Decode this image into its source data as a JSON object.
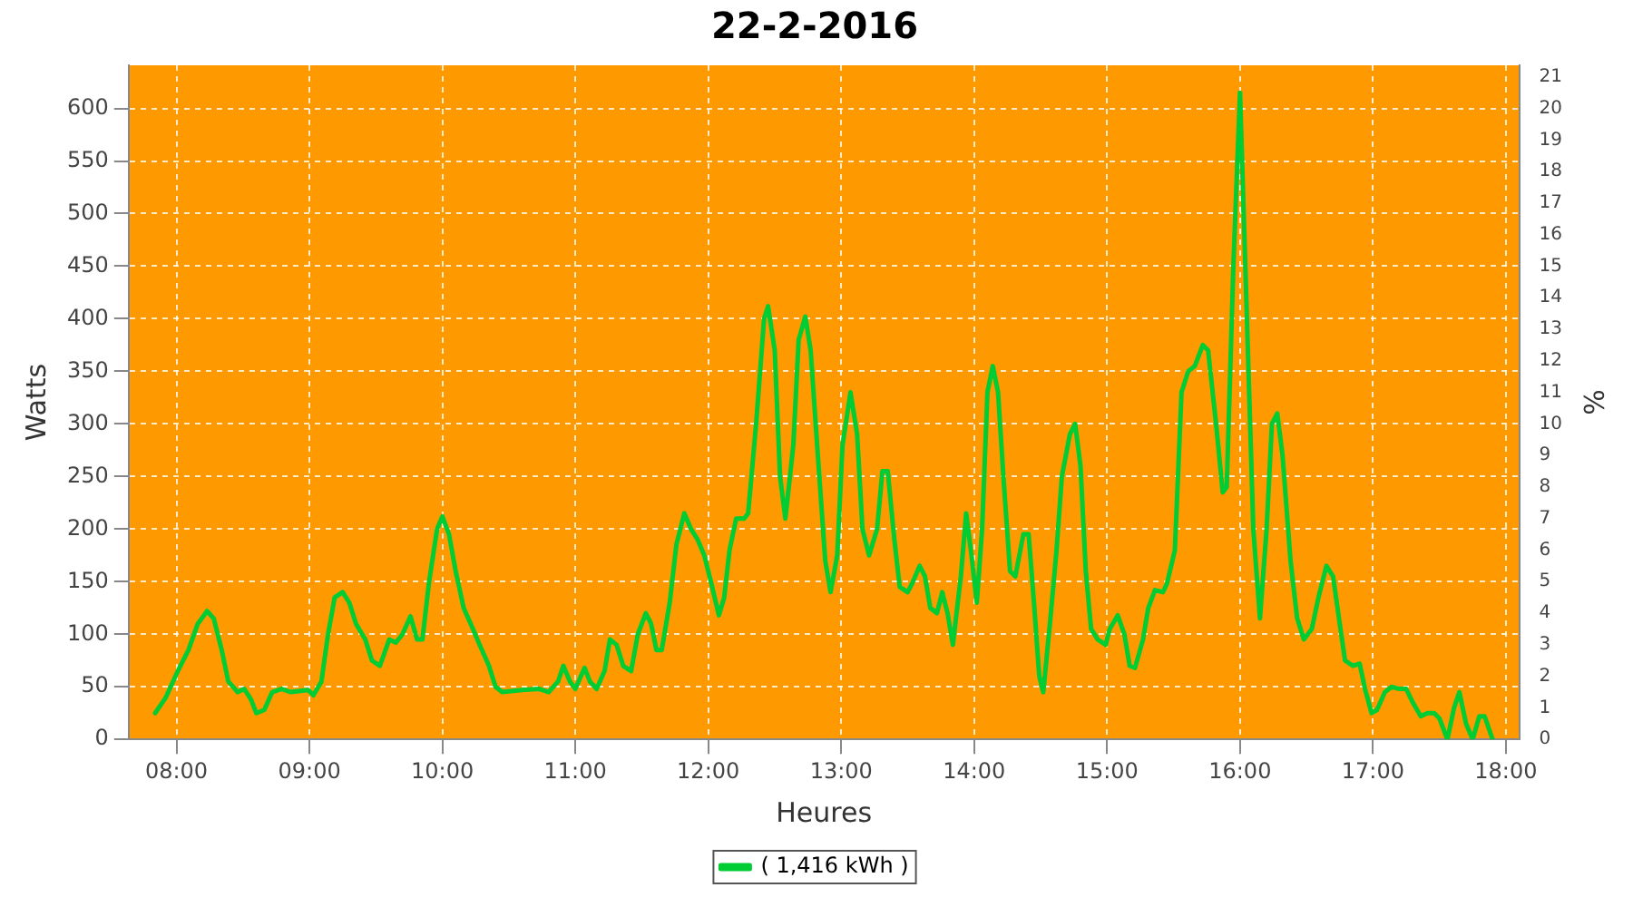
{
  "chart_data": {
    "type": "line",
    "title": "22-2-2016",
    "xlabel": "Heures",
    "ylabel": "Watts",
    "y2label": "%",
    "xlim": [
      7.64,
      18.1
    ],
    "xticks": [
      {
        "value": 8,
        "label": "08:00"
      },
      {
        "value": 9,
        "label": "09:00"
      },
      {
        "value": 10,
        "label": "10:00"
      },
      {
        "value": 11,
        "label": "11:00"
      },
      {
        "value": 12,
        "label": "12:00"
      },
      {
        "value": 13,
        "label": "13:00"
      },
      {
        "value": 14,
        "label": "14:00"
      },
      {
        "value": 15,
        "label": "15:00"
      },
      {
        "value": 16,
        "label": "16:00"
      },
      {
        "value": 17,
        "label": "17:00"
      },
      {
        "value": 18,
        "label": "18:00"
      }
    ],
    "ylim": [
      0,
      641
    ],
    "yticks": [
      0,
      50,
      100,
      150,
      200,
      250,
      300,
      350,
      400,
      450,
      500,
      550,
      600
    ],
    "y2lim": [
      0,
      21.37
    ],
    "y2ticks": [
      0,
      1,
      2,
      3,
      4,
      5,
      6,
      7,
      8,
      9,
      10,
      11,
      12,
      13,
      14,
      15,
      16,
      17,
      18,
      19,
      20,
      21
    ],
    "grid": true,
    "legend": "bottom",
    "marker": "none",
    "line_style": "solid",
    "series": [
      {
        "name": "( 1,416 kWh )",
        "color": "#00cc33",
        "x": [
          7.84,
          7.92,
          8.01,
          8.09,
          8.16,
          8.23,
          8.28,
          8.34,
          8.39,
          8.46,
          8.51,
          8.56,
          8.6,
          8.66,
          8.72,
          8.79,
          8.86,
          8.99,
          9.03,
          9.09,
          9.14,
          9.19,
          9.25,
          9.3,
          9.35,
          9.42,
          9.47,
          9.53,
          9.6,
          9.65,
          9.7,
          9.76,
          9.81,
          9.85,
          9.9,
          9.96,
          10.0,
          10.05,
          10.1,
          10.16,
          10.23,
          10.28,
          10.35,
          10.4,
          10.45,
          10.6,
          10.73,
          10.8,
          10.87,
          10.91,
          10.96,
          11.0,
          11.07,
          11.11,
          11.16,
          11.22,
          11.26,
          11.31,
          11.36,
          11.42,
          11.47,
          11.53,
          11.57,
          11.61,
          11.65,
          11.71,
          11.76,
          11.82,
          11.87,
          11.92,
          11.97,
          12.02,
          12.08,
          12.12,
          12.16,
          12.21,
          12.27,
          12.3,
          12.36,
          12.42,
          12.45,
          12.5,
          12.54,
          12.58,
          12.64,
          12.68,
          12.73,
          12.77,
          12.83,
          12.88,
          12.92,
          12.97,
          13.01,
          13.07,
          13.12,
          13.16,
          13.21,
          13.27,
          13.31,
          13.35,
          13.4,
          13.44,
          13.5,
          13.54,
          13.59,
          13.63,
          13.67,
          13.72,
          13.76,
          13.8,
          13.84,
          13.9,
          13.94,
          13.98,
          14.02,
          14.06,
          14.1,
          14.14,
          14.18,
          14.22,
          14.27,
          14.31,
          14.37,
          14.41,
          14.45,
          14.49,
          14.52,
          14.57,
          14.62,
          14.66,
          14.72,
          14.76,
          14.8,
          14.84,
          14.88,
          14.93,
          14.99,
          15.02,
          15.08,
          15.13,
          15.17,
          15.21,
          15.27,
          15.31,
          15.36,
          15.42,
          15.45,
          15.51,
          15.56,
          15.61,
          15.66,
          15.72,
          15.76,
          15.82,
          15.87,
          15.9,
          15.95,
          16.0,
          16.04,
          16.1,
          16.15,
          16.2,
          16.24,
          16.28,
          16.32,
          16.38,
          16.43,
          16.48,
          16.54,
          16.59,
          16.65,
          16.7,
          16.75,
          16.79,
          16.85,
          16.9,
          16.94,
          16.99,
          17.03,
          17.09,
          17.14,
          17.2,
          17.25,
          17.3,
          17.36,
          17.41,
          17.46,
          17.5,
          17.56,
          17.61,
          17.65,
          17.7,
          17.75,
          17.8,
          17.84,
          17.9
        ],
        "values": [
          25,
          40,
          65,
          85,
          110,
          122,
          115,
          85,
          55,
          45,
          48,
          38,
          25,
          28,
          45,
          48,
          45,
          47,
          42,
          55,
          100,
          135,
          140,
          130,
          110,
          95,
          75,
          70,
          95,
          92,
          100,
          117,
          95,
          95,
          150,
          200,
          212,
          195,
          160,
          125,
          105,
          90,
          70,
          50,
          45,
          47,
          48,
          45,
          55,
          70,
          55,
          48,
          68,
          55,
          48,
          65,
          95,
          90,
          70,
          65,
          100,
          120,
          110,
          85,
          85,
          130,
          185,
          215,
          200,
          190,
          175,
          150,
          118,
          135,
          180,
          210,
          210,
          215,
          300,
          400,
          412,
          370,
          250,
          210,
          280,
          380,
          402,
          370,
          260,
          170,
          140,
          175,
          280,
          330,
          290,
          200,
          175,
          200,
          255,
          255,
          190,
          145,
          140,
          150,
          165,
          155,
          125,
          120,
          140,
          120,
          90,
          155,
          215,
          175,
          130,
          200,
          330,
          355,
          330,
          250,
          160,
          155,
          195,
          195,
          130,
          60,
          45,
          110,
          180,
          250,
          290,
          300,
          260,
          160,
          105,
          95,
          90,
          105,
          118,
          100,
          70,
          68,
          95,
          125,
          142,
          140,
          148,
          180,
          330,
          350,
          355,
          375,
          370,
          300,
          235,
          240,
          450,
          615,
          450,
          200,
          115,
          200,
          300,
          310,
          270,
          170,
          115,
          95,
          105,
          135,
          165,
          155,
          110,
          75,
          70,
          72,
          48,
          25,
          28,
          45,
          50,
          48,
          48,
          35,
          22,
          25,
          25,
          20,
          0,
          30,
          45,
          15,
          0,
          22,
          22,
          0
        ]
      }
    ]
  }
}
